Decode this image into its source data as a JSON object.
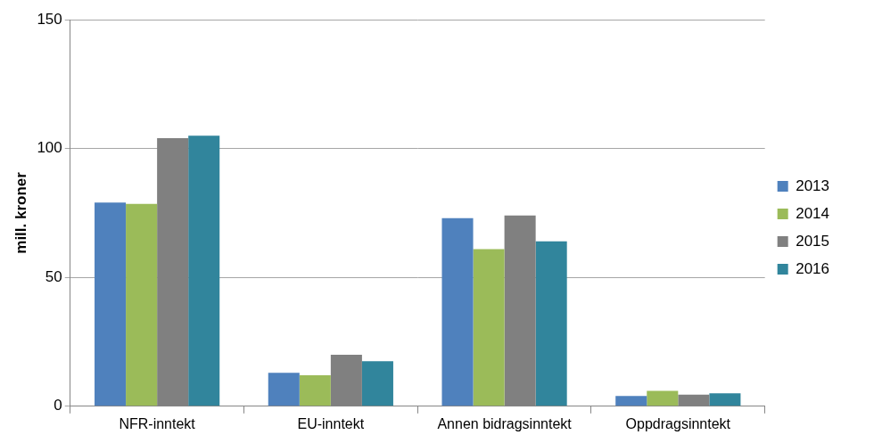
{
  "chart_data": {
    "type": "bar",
    "y_label": "mill. kroner",
    "categories": [
      "NFR-inntekt",
      "EU-inntekt",
      "Annen bidragsinntekt",
      "Oppdragsinntekt"
    ],
    "series": [
      {
        "name": "2013",
        "color": "#4f81bd",
        "values": [
          79,
          13,
          73,
          4
        ]
      },
      {
        "name": "2014",
        "color": "#9bbb59",
        "values": [
          78.5,
          12,
          61,
          6
        ]
      },
      {
        "name": "2015",
        "color": "#808080",
        "values": [
          104,
          20,
          74,
          4.5
        ]
      },
      {
        "name": "2016",
        "color": "#31859c",
        "values": [
          105,
          17.5,
          64,
          5
        ]
      }
    ],
    "ylim": [
      0,
      150
    ],
    "yticks": [
      0,
      50,
      100,
      150
    ],
    "grid": true,
    "legend": "right"
  }
}
